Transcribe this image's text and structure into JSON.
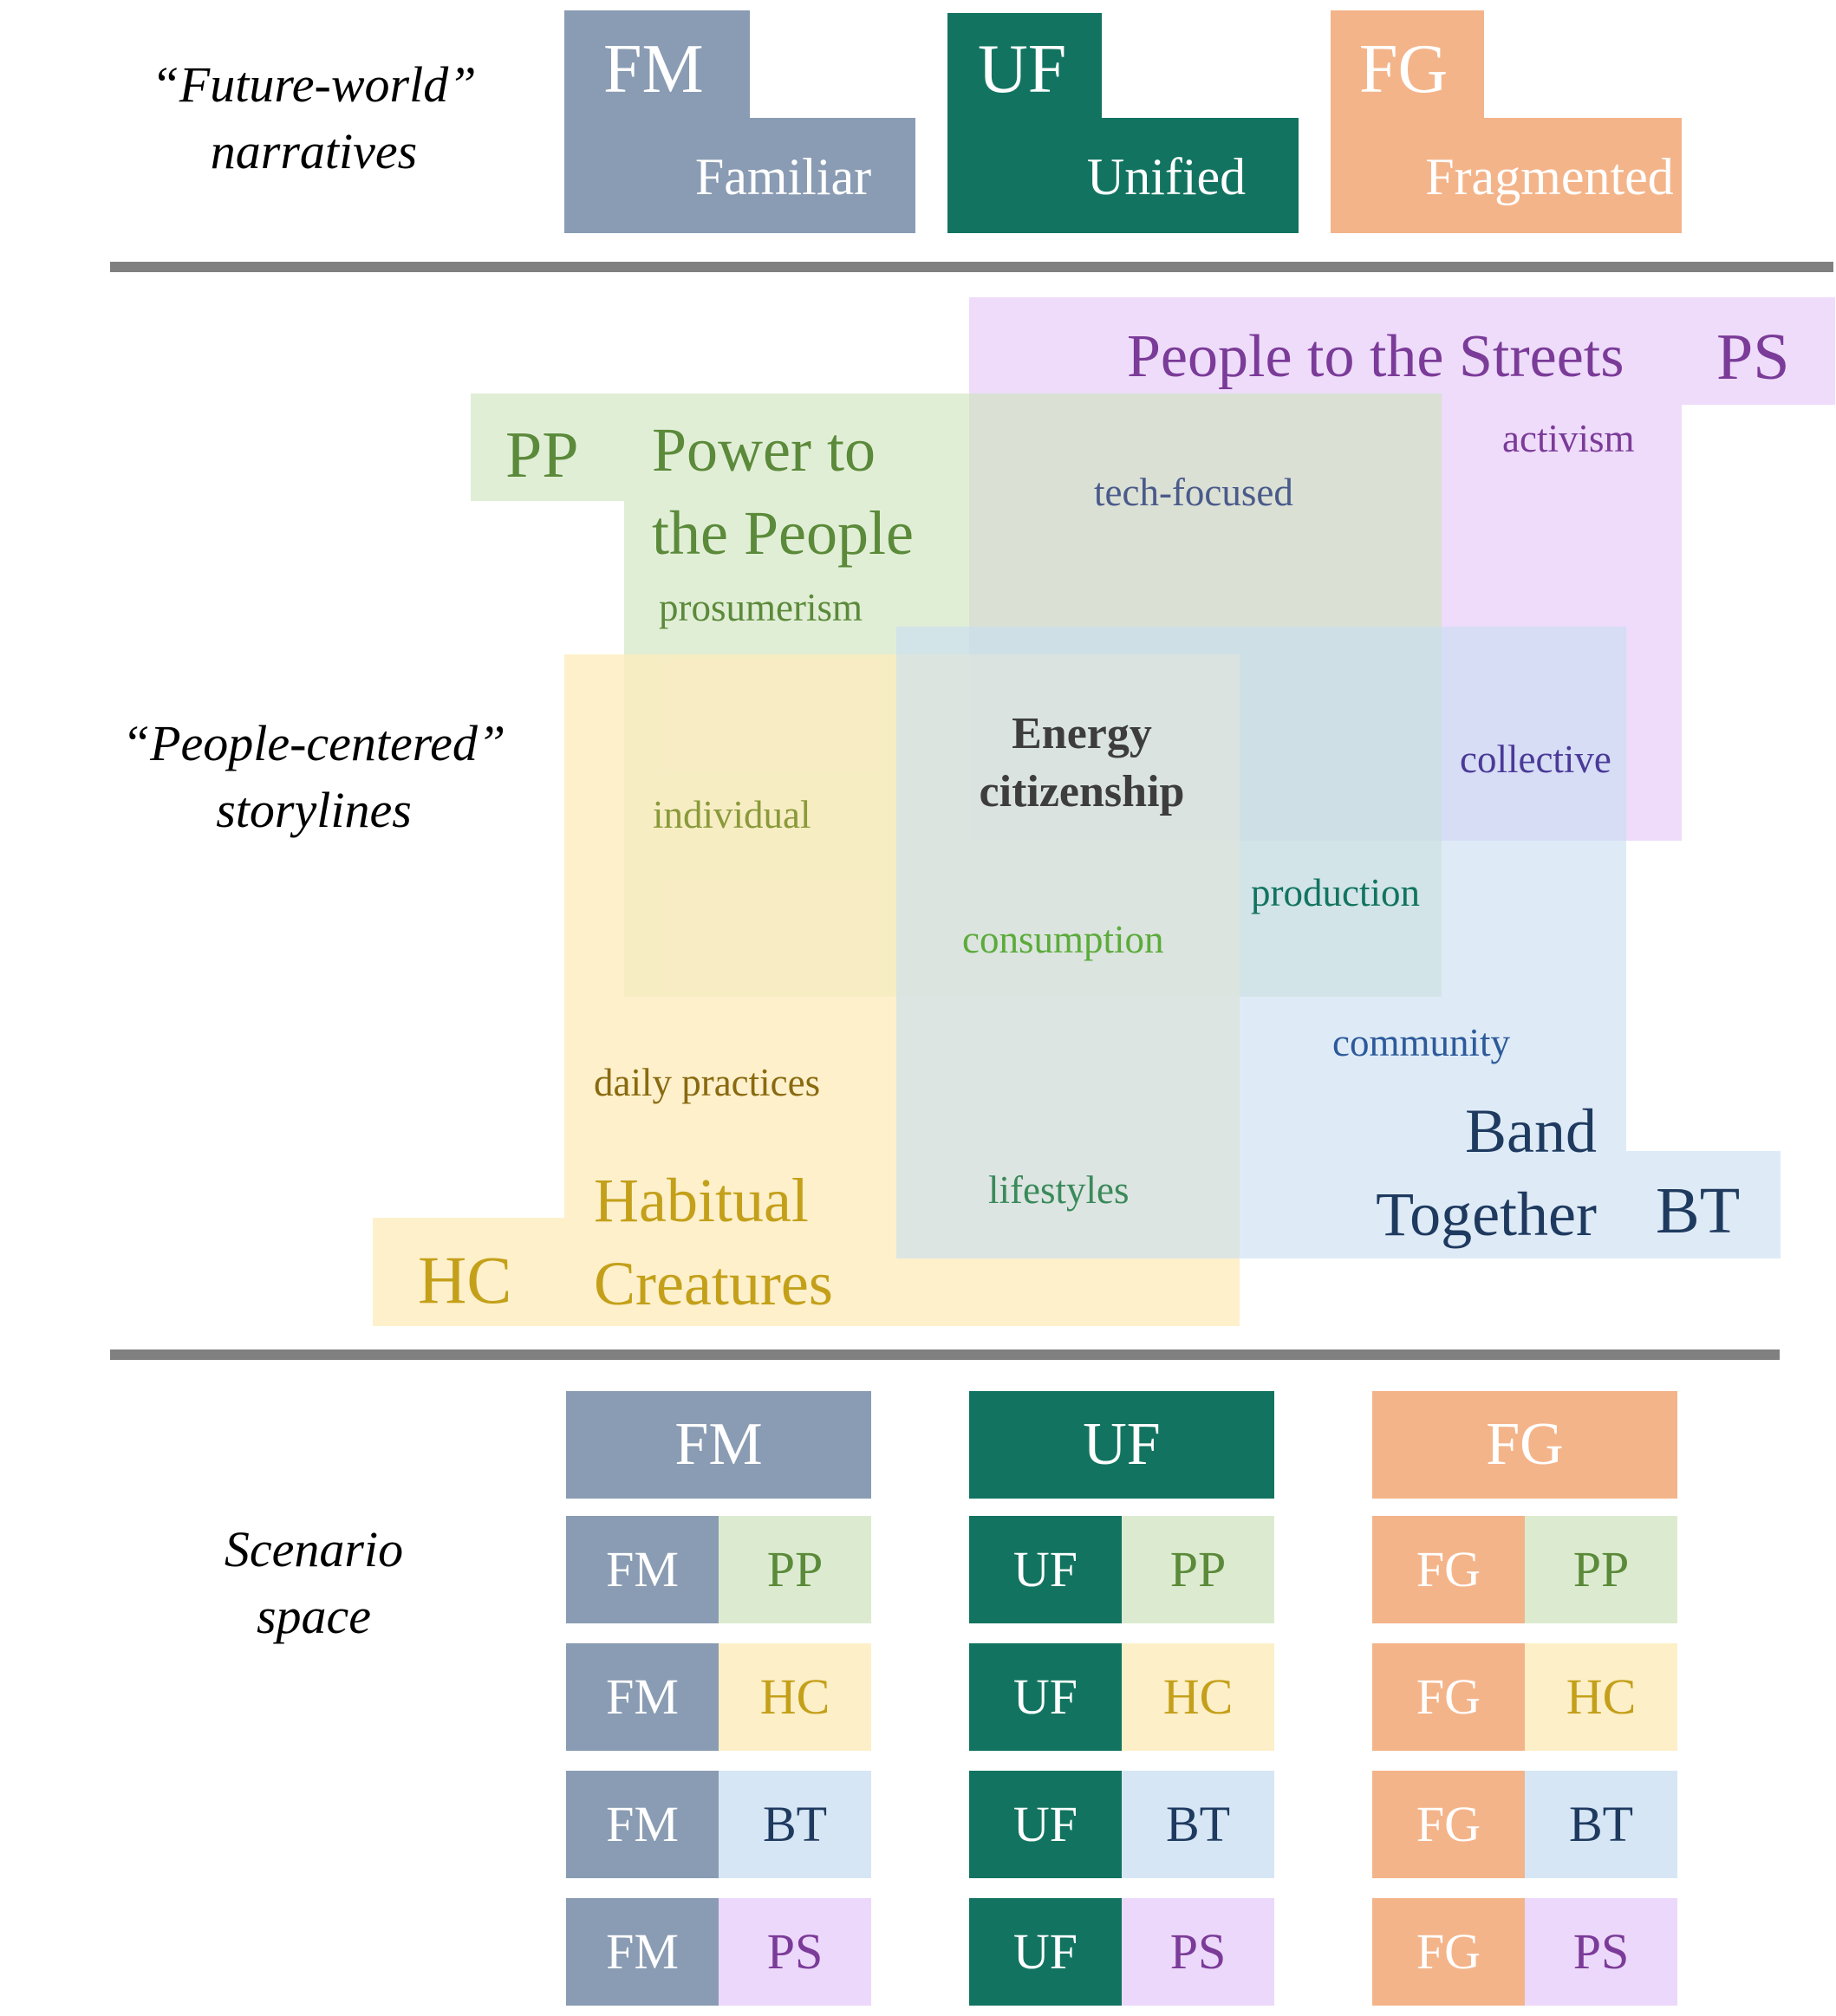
{
  "colors": {
    "FM": "#8a9cb3",
    "UF": "#127460",
    "FG": "#f4b48a",
    "PP_fill": "#dcebd0",
    "PS_fill": "#ecd8fa",
    "HC_fill": "#fdefc8",
    "BT_fill": "#d6e6f5",
    "PP_text": "#5b8a3a",
    "PS_text": "#7b3b98",
    "HC_text": "#c4a01a",
    "BT_text": "#1f3a5f",
    "divider": "#808080"
  },
  "row_labels": {
    "future_world": {
      "open": "“",
      "word": "Future-world",
      "close": "”",
      "line2": "narratives"
    },
    "people_centered": {
      "open": "“",
      "word": "People-centered",
      "close": "”",
      "line2": "storylines"
    },
    "scenario": {
      "line1": "Scenario",
      "line2": "space"
    }
  },
  "narratives": [
    {
      "code": "FM",
      "name": "Familiar",
      "icon": "step-block"
    },
    {
      "code": "UF",
      "name": "Unified",
      "icon": "step-block"
    },
    {
      "code": "FG",
      "name": "Fragmented",
      "icon": "step-block"
    }
  ],
  "storylines": {
    "PS": {
      "code": "PS",
      "title": "People to the Streets"
    },
    "PP": {
      "code": "PP",
      "title_line1": "Power to",
      "title_line2": "the People"
    },
    "HC": {
      "code": "HC",
      "title_line1": "Habitual",
      "title_line2": "Creatures"
    },
    "BT": {
      "code": "BT",
      "title_line1": "Band",
      "title_line2": "Together"
    }
  },
  "center": {
    "line1": "Energy",
    "line2": "citizenship"
  },
  "keywords": {
    "activism": "activism",
    "tech_focused": "tech-focused",
    "prosumerism": "prosumerism",
    "collective": "collective",
    "individual": "individual",
    "production": "production",
    "consumption": "consumption",
    "community": "community",
    "daily_practices": "daily practices",
    "lifestyles": "lifestyles"
  },
  "scenario_space": {
    "columns": [
      {
        "header": "FM",
        "rows": [
          [
            "FM",
            "PP"
          ],
          [
            "FM",
            "HC"
          ],
          [
            "FM",
            "BT"
          ],
          [
            "FM",
            "PS"
          ]
        ]
      },
      {
        "header": "UF",
        "rows": [
          [
            "UF",
            "PP"
          ],
          [
            "UF",
            "HC"
          ],
          [
            "UF",
            "BT"
          ],
          [
            "UF",
            "PS"
          ]
        ]
      },
      {
        "header": "FG",
        "rows": [
          [
            "FG",
            "PP"
          ],
          [
            "FG",
            "HC"
          ],
          [
            "FG",
            "BT"
          ],
          [
            "FG",
            "PS"
          ]
        ]
      }
    ]
  }
}
